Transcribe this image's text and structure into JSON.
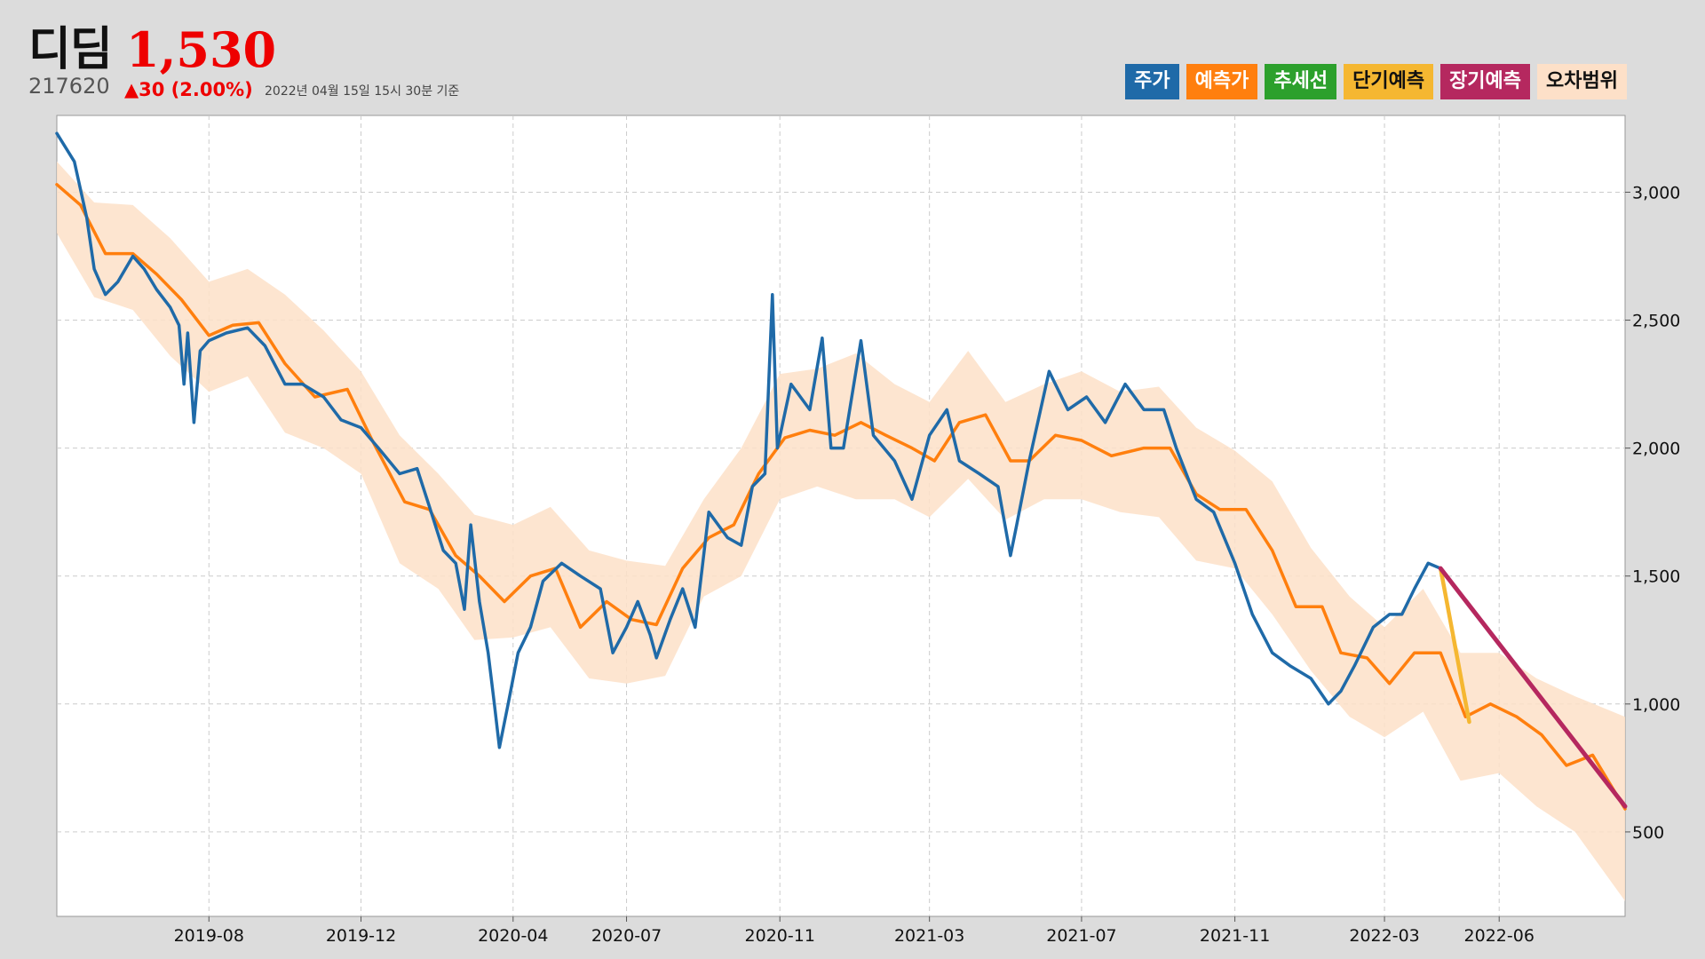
{
  "stock": {
    "name": "디딤",
    "price": "1,530",
    "code": "217620",
    "change": "▲30 (2.00%)",
    "date": "2022년 04월 15일 15시 30분 기준"
  },
  "legend": [
    {
      "label": "주가",
      "color": "#1f6aa8",
      "text_color": "#ffffff"
    },
    {
      "label": "예측가",
      "color": "#ff7f0e",
      "text_color": "#ffffff"
    },
    {
      "label": "추세선",
      "color": "#2ca02c",
      "text_color": "#ffffff"
    },
    {
      "label": "단기예측",
      "color": "#f5b731",
      "text_color": "#111111"
    },
    {
      "label": "장기예측",
      "color": "#b5285f",
      "text_color": "#ffffff"
    },
    {
      "label": "오차범위",
      "color": "#fde0c8",
      "text_color": "#111111"
    }
  ],
  "chart_data": {
    "type": "line",
    "x_ticks": [
      "2019-08",
      "2019-12",
      "2020-04",
      "2020-07",
      "2020-11",
      "2021-03",
      "2021-07",
      "2021-11",
      "2022-03",
      "2022-06"
    ],
    "y_ticks": [
      "500",
      "1,000",
      "1,500",
      "2,000",
      "2,500",
      "3,000"
    ],
    "xlim": [
      "2019-04-01",
      "2022-09-10"
    ],
    "ylim": [
      170,
      3300
    ],
    "grid": true,
    "y_axis_side": "right",
    "series": [
      {
        "name": "주가",
        "color": "#1f6aa8",
        "points": [
          [
            "2019-04-01",
            3230
          ],
          [
            "2019-04-15",
            3120
          ],
          [
            "2019-04-25",
            2900
          ],
          [
            "2019-05-01",
            2700
          ],
          [
            "2019-05-10",
            2600
          ],
          [
            "2019-05-20",
            2650
          ],
          [
            "2019-06-01",
            2750
          ],
          [
            "2019-06-10",
            2700
          ],
          [
            "2019-06-20",
            2620
          ],
          [
            "2019-07-01",
            2550
          ],
          [
            "2019-07-08",
            2480
          ],
          [
            "2019-07-12",
            2250
          ],
          [
            "2019-07-15",
            2450
          ],
          [
            "2019-07-20",
            2100
          ],
          [
            "2019-07-25",
            2380
          ],
          [
            "2019-08-01",
            2420
          ],
          [
            "2019-08-15",
            2450
          ],
          [
            "2019-09-01",
            2470
          ],
          [
            "2019-09-15",
            2400
          ],
          [
            "2019-10-01",
            2250
          ],
          [
            "2019-10-15",
            2250
          ],
          [
            "2019-11-01",
            2200
          ],
          [
            "2019-11-15",
            2110
          ],
          [
            "2019-12-01",
            2080
          ],
          [
            "2019-12-15",
            2000
          ],
          [
            "2020-01-01",
            1900
          ],
          [
            "2020-01-15",
            1920
          ],
          [
            "2020-01-25",
            1770
          ],
          [
            "2020-02-05",
            1600
          ],
          [
            "2020-02-15",
            1550
          ],
          [
            "2020-02-22",
            1370
          ],
          [
            "2020-02-27",
            1700
          ],
          [
            "2020-03-05",
            1400
          ],
          [
            "2020-03-12",
            1200
          ],
          [
            "2020-03-17",
            1000
          ],
          [
            "2020-03-21",
            830
          ],
          [
            "2020-03-28",
            1000
          ],
          [
            "2020-04-05",
            1200
          ],
          [
            "2020-04-15",
            1300
          ],
          [
            "2020-04-25",
            1480
          ],
          [
            "2020-05-10",
            1550
          ],
          [
            "2020-05-25",
            1500
          ],
          [
            "2020-06-10",
            1450
          ],
          [
            "2020-06-20",
            1200
          ],
          [
            "2020-07-01",
            1300
          ],
          [
            "2020-07-10",
            1400
          ],
          [
            "2020-07-20",
            1270
          ],
          [
            "2020-07-25",
            1180
          ],
          [
            "2020-08-05",
            1330
          ],
          [
            "2020-08-15",
            1450
          ],
          [
            "2020-08-25",
            1300
          ],
          [
            "2020-09-05",
            1750
          ],
          [
            "2020-09-20",
            1650
          ],
          [
            "2020-10-01",
            1620
          ],
          [
            "2020-10-10",
            1850
          ],
          [
            "2020-10-20",
            1900
          ],
          [
            "2020-10-26",
            2600
          ],
          [
            "2020-10-30",
            2000
          ],
          [
            "2020-11-10",
            2250
          ],
          [
            "2020-11-25",
            2150
          ],
          [
            "2020-12-05",
            2430
          ],
          [
            "2020-12-12",
            2000
          ],
          [
            "2020-12-22",
            2000
          ],
          [
            "2021-01-05",
            2420
          ],
          [
            "2021-01-15",
            2050
          ],
          [
            "2021-02-01",
            1950
          ],
          [
            "2021-02-15",
            1800
          ],
          [
            "2021-03-01",
            2050
          ],
          [
            "2021-03-15",
            2150
          ],
          [
            "2021-03-25",
            1950
          ],
          [
            "2021-04-10",
            1900
          ],
          [
            "2021-04-25",
            1850
          ],
          [
            "2021-05-05",
            1580
          ],
          [
            "2021-05-10",
            1700
          ],
          [
            "2021-05-20",
            1950
          ],
          [
            "2021-06-05",
            2300
          ],
          [
            "2021-06-20",
            2150
          ],
          [
            "2021-07-05",
            2200
          ],
          [
            "2021-07-20",
            2100
          ],
          [
            "2021-08-05",
            2250
          ],
          [
            "2021-08-20",
            2150
          ],
          [
            "2021-09-05",
            2150
          ],
          [
            "2021-09-15",
            2000
          ],
          [
            "2021-10-01",
            1800
          ],
          [
            "2021-10-15",
            1750
          ],
          [
            "2021-11-01",
            1550
          ],
          [
            "2021-11-15",
            1350
          ],
          [
            "2021-12-01",
            1200
          ],
          [
            "2021-12-15",
            1150
          ],
          [
            "2022-01-01",
            1100
          ],
          [
            "2022-01-15",
            1000
          ],
          [
            "2022-01-25",
            1050
          ],
          [
            "2022-02-05",
            1150
          ],
          [
            "2022-02-20",
            1300
          ],
          [
            "2022-03-05",
            1350
          ],
          [
            "2022-03-15",
            1350
          ],
          [
            "2022-03-25",
            1450
          ],
          [
            "2022-04-05",
            1550
          ],
          [
            "2022-04-15",
            1530
          ]
        ]
      },
      {
        "name": "예측가",
        "color": "#ff7f0e",
        "points": [
          [
            "2019-04-01",
            3030
          ],
          [
            "2019-04-20",
            2950
          ],
          [
            "2019-05-10",
            2760
          ],
          [
            "2019-06-01",
            2760
          ],
          [
            "2019-06-20",
            2680
          ],
          [
            "2019-07-10",
            2580
          ],
          [
            "2019-08-01",
            2440
          ],
          [
            "2019-08-20",
            2480
          ],
          [
            "2019-09-10",
            2490
          ],
          [
            "2019-10-01",
            2330
          ],
          [
            "2019-10-25",
            2200
          ],
          [
            "2019-11-20",
            2230
          ],
          [
            "2019-12-10",
            2030
          ],
          [
            "2020-01-05",
            1790
          ],
          [
            "2020-01-25",
            1760
          ],
          [
            "2020-02-15",
            1580
          ],
          [
            "2020-03-05",
            1500
          ],
          [
            "2020-03-25",
            1400
          ],
          [
            "2020-04-15",
            1500
          ],
          [
            "2020-05-05",
            1530
          ],
          [
            "2020-05-25",
            1300
          ],
          [
            "2020-06-15",
            1400
          ],
          [
            "2020-07-05",
            1330
          ],
          [
            "2020-07-25",
            1310
          ],
          [
            "2020-08-15",
            1530
          ],
          [
            "2020-09-05",
            1650
          ],
          [
            "2020-09-25",
            1700
          ],
          [
            "2020-10-15",
            1900
          ],
          [
            "2020-11-05",
            2040
          ],
          [
            "2020-11-25",
            2070
          ],
          [
            "2020-12-15",
            2050
          ],
          [
            "2021-01-05",
            2100
          ],
          [
            "2021-01-25",
            2050
          ],
          [
            "2021-02-15",
            2000
          ],
          [
            "2021-03-05",
            1950
          ],
          [
            "2021-03-25",
            2100
          ],
          [
            "2021-04-15",
            2130
          ],
          [
            "2021-05-05",
            1950
          ],
          [
            "2021-05-20",
            1950
          ],
          [
            "2021-06-10",
            2050
          ],
          [
            "2021-07-01",
            2030
          ],
          [
            "2021-07-25",
            1970
          ],
          [
            "2021-08-20",
            2000
          ],
          [
            "2021-09-10",
            2000
          ],
          [
            "2021-10-01",
            1820
          ],
          [
            "2021-10-20",
            1760
          ],
          [
            "2021-11-10",
            1760
          ],
          [
            "2021-12-01",
            1600
          ],
          [
            "2021-12-20",
            1380
          ],
          [
            "2022-01-10",
            1380
          ],
          [
            "2022-01-25",
            1200
          ],
          [
            "2022-02-15",
            1180
          ],
          [
            "2022-03-05",
            1080
          ],
          [
            "2022-03-25",
            1200
          ],
          [
            "2022-04-15",
            1200
          ],
          [
            "2022-05-05",
            950
          ],
          [
            "2022-05-25",
            1000
          ],
          [
            "2022-06-15",
            950
          ],
          [
            "2022-07-05",
            880
          ],
          [
            "2022-07-25",
            760
          ],
          [
            "2022-08-15",
            800
          ],
          [
            "2022-09-10",
            590
          ]
        ]
      },
      {
        "name": "단기예측",
        "color": "#f5b731",
        "points": [
          [
            "2022-04-15",
            1530
          ],
          [
            "2022-05-08",
            930
          ]
        ]
      },
      {
        "name": "장기예측",
        "color": "#b5285f",
        "points": [
          [
            "2022-04-15",
            1530
          ],
          [
            "2022-09-10",
            600
          ]
        ]
      },
      {
        "name": "오차범위",
        "color": "#fde0c8",
        "band": [
          [
            "2019-04-01",
            3120,
            2840
          ],
          [
            "2019-05-01",
            2960,
            2590
          ],
          [
            "2019-06-01",
            2950,
            2540
          ],
          [
            "2019-07-01",
            2820,
            2360
          ],
          [
            "2019-08-01",
            2650,
            2220
          ],
          [
            "2019-09-01",
            2700,
            2280
          ],
          [
            "2019-10-01",
            2600,
            2060
          ],
          [
            "2019-11-01",
            2460,
            2000
          ],
          [
            "2019-12-01",
            2300,
            1900
          ],
          [
            "2020-01-01",
            2050,
            1550
          ],
          [
            "2020-02-01",
            1900,
            1450
          ],
          [
            "2020-03-01",
            1740,
            1250
          ],
          [
            "2020-04-01",
            1700,
            1260
          ],
          [
            "2020-05-01",
            1770,
            1300
          ],
          [
            "2020-06-01",
            1600,
            1100
          ],
          [
            "2020-07-01",
            1560,
            1080
          ],
          [
            "2020-08-01",
            1540,
            1110
          ],
          [
            "2020-09-01",
            1800,
            1420
          ],
          [
            "2020-10-01",
            2000,
            1500
          ],
          [
            "2020-11-01",
            2290,
            1800
          ],
          [
            "2020-12-01",
            2310,
            1850
          ],
          [
            "2021-01-01",
            2370,
            1800
          ],
          [
            "2021-02-01",
            2250,
            1800
          ],
          [
            "2021-03-01",
            2180,
            1730
          ],
          [
            "2021-04-01",
            2380,
            1880
          ],
          [
            "2021-05-01",
            2180,
            1720
          ],
          [
            "2021-06-01",
            2250,
            1800
          ],
          [
            "2021-07-01",
            2300,
            1800
          ],
          [
            "2021-08-01",
            2220,
            1750
          ],
          [
            "2021-09-01",
            2240,
            1730
          ],
          [
            "2021-10-01",
            2080,
            1560
          ],
          [
            "2021-11-01",
            1990,
            1530
          ],
          [
            "2021-12-01",
            1870,
            1350
          ],
          [
            "2022-01-01",
            1610,
            1130
          ],
          [
            "2022-02-01",
            1420,
            950
          ],
          [
            "2022-03-01",
            1300,
            870
          ],
          [
            "2022-04-01",
            1450,
            970
          ],
          [
            "2022-05-01",
            1200,
            700
          ],
          [
            "2022-06-01",
            1200,
            730
          ],
          [
            "2022-07-01",
            1100,
            600
          ],
          [
            "2022-08-01",
            1030,
            500
          ],
          [
            "2022-09-10",
            950,
            230
          ]
        ]
      }
    ]
  }
}
